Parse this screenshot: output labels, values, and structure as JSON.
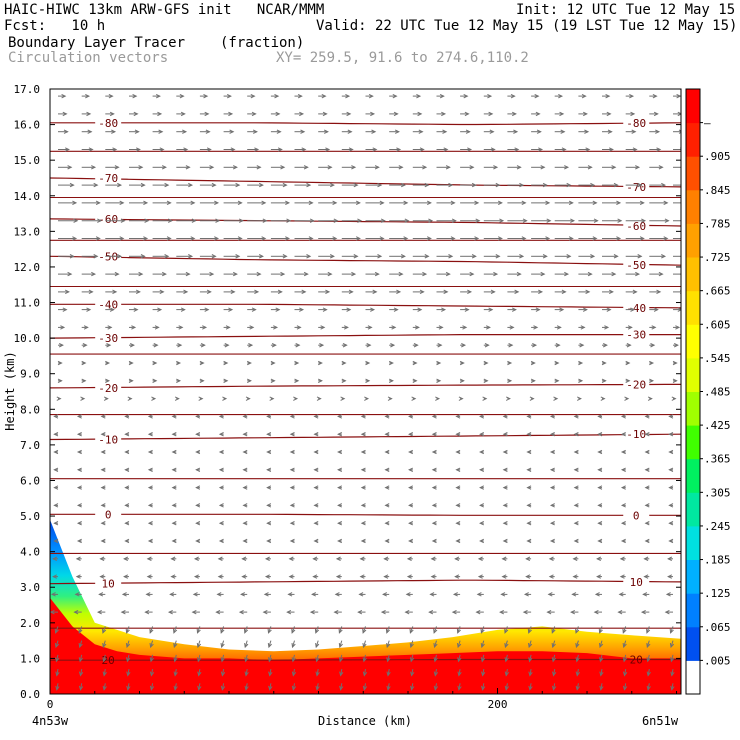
{
  "header": {
    "model_line": "HAIC-HIWC 13km ARW-GFS init   NCAR/MMM",
    "init_line": "Init: 12 UTC Tue 12 May 15",
    "fcst_line": "Fcst:   10 h",
    "valid_line": "Valid: 22 UTC Tue 12 May 15 (19 LST Tue 12 May 15)",
    "field_name": "Boundary Layer Tracer",
    "field_units": "(fraction)",
    "overlay_name": "Circulation vectors",
    "xy_line": "XY= 259.5, 91.6 to 274.6,110.2"
  },
  "chart_data": {
    "type": "heatmap",
    "xlabel": "Distance (km)",
    "ylabel": "Height (km)",
    "xlim": [
      0,
      282
    ],
    "ylim": [
      0,
      17
    ],
    "y_ticks": [
      "0.0",
      "1.0",
      "2.0",
      "3.0",
      "4.0",
      "5.0",
      "6.0",
      "7.0",
      "8.0",
      "9.0",
      "10.0",
      "11.0",
      "12.0",
      "13.0",
      "14.0",
      "15.0",
      "16.0",
      "17.0"
    ],
    "x_ticks": [
      {
        "value": 0,
        "label": "0"
      },
      {
        "value": 200,
        "label": "200"
      }
    ],
    "x_endpoints": {
      "left": "4n53w",
      "right": "6n51w"
    },
    "colorbar": {
      "labels": [
        ".005",
        ".065",
        ".125",
        ".185",
        ".245",
        ".305",
        ".365",
        ".425",
        ".485",
        ".545",
        ".605",
        ".665",
        ".725",
        ".785",
        ".845",
        ".905",
        "–"
      ],
      "colors": [
        "#ffffff",
        "#0050f0",
        "#0080ff",
        "#00b0ff",
        "#00e0e0",
        "#00e8a0",
        "#00f060",
        "#40ff00",
        "#a0ff00",
        "#e0ff00",
        "#ffff00",
        "#ffe000",
        "#ffc000",
        "#ffa000",
        "#ff8000",
        "#ff5000",
        "#ff2000",
        "#ff0000"
      ]
    },
    "tracer_profile": {
      "x_km": [
        0,
        10,
        20,
        30,
        40,
        60,
        80,
        100,
        120,
        140,
        160,
        180,
        200,
        220,
        240,
        260,
        282
      ],
      "top_height_km": [
        4.9,
        3.3,
        2.0,
        1.8,
        1.6,
        1.4,
        1.25,
        1.2,
        1.25,
        1.35,
        1.45,
        1.6,
        1.8,
        1.9,
        1.75,
        1.65,
        1.55
      ],
      "core_height_km": [
        2.7,
        1.9,
        1.4,
        1.2,
        1.1,
        1.0,
        1.0,
        0.95,
        1.0,
        1.05,
        1.1,
        1.15,
        1.2,
        1.2,
        1.15,
        1.0,
        1.0
      ]
    },
    "temperature_contours": [
      {
        "label": "20",
        "height_km": [
          0.95,
          0.95,
          0.97,
          0.97
        ]
      },
      {
        "label": "10",
        "height_km": [
          3.1,
          3.15,
          3.2,
          3.15
        ]
      },
      {
        "label": "0",
        "height_km": [
          5.05,
          5.05,
          5.02,
          5.02
        ]
      },
      {
        "label": "-10",
        "height_km": [
          7.15,
          7.2,
          7.25,
          7.3
        ]
      },
      {
        "label": "-20",
        "height_km": [
          8.6,
          8.65,
          8.68,
          8.7
        ]
      },
      {
        "label": "-30",
        "height_km": [
          10.0,
          10.05,
          10.1,
          10.1
        ]
      },
      {
        "label": "-40",
        "height_km": [
          10.95,
          10.95,
          10.9,
          10.85
        ]
      },
      {
        "label": "-50",
        "height_km": [
          12.3,
          12.2,
          12.15,
          12.05
        ]
      },
      {
        "label": "-60",
        "height_km": [
          13.35,
          13.3,
          13.25,
          13.15
        ]
      },
      {
        "label": "-70",
        "height_km": [
          14.5,
          14.4,
          14.3,
          14.25
        ]
      },
      {
        "label": "-80",
        "height_km": [
          16.05,
          16.05,
          16.0,
          16.05
        ]
      }
    ],
    "contour_x_km": [
      0,
      94,
      188,
      282
    ],
    "extra_contour_heights_km": [
      1.85,
      3.95,
      6.05,
      7.85,
      9.55,
      11.45,
      12.75,
      13.95,
      15.25
    ],
    "vector_field": {
      "rows_height_km": [
        0.3,
        0.7,
        1.1,
        1.5,
        1.9,
        2.3,
        2.8,
        3.3,
        3.8,
        4.3,
        4.8,
        5.3,
        5.8,
        6.3,
        6.8,
        7.3,
        7.8,
        8.3,
        8.8,
        9.3,
        9.8,
        10.3,
        10.8,
        11.3,
        11.8,
        12.3,
        12.8,
        13.3,
        13.8,
        14.3,
        14.8,
        15.3,
        15.8,
        16.3,
        16.8
      ],
      "u_by_row": [
        -0.3,
        -0.3,
        -0.4,
        -0.5,
        -0.6,
        -0.6,
        -0.5,
        -0.4,
        -0.4,
        -0.3,
        -0.3,
        -0.3,
        -0.3,
        -0.3,
        -0.3,
        -0.3,
        -0.3,
        0.2,
        0.3,
        0.3,
        0.4,
        0.5,
        0.7,
        0.9,
        1.1,
        1.3,
        1.5,
        1.6,
        1.5,
        1.3,
        1.1,
        0.9,
        0.8,
        0.7,
        0.6
      ],
      "w_low_levels": -0.8
    }
  }
}
